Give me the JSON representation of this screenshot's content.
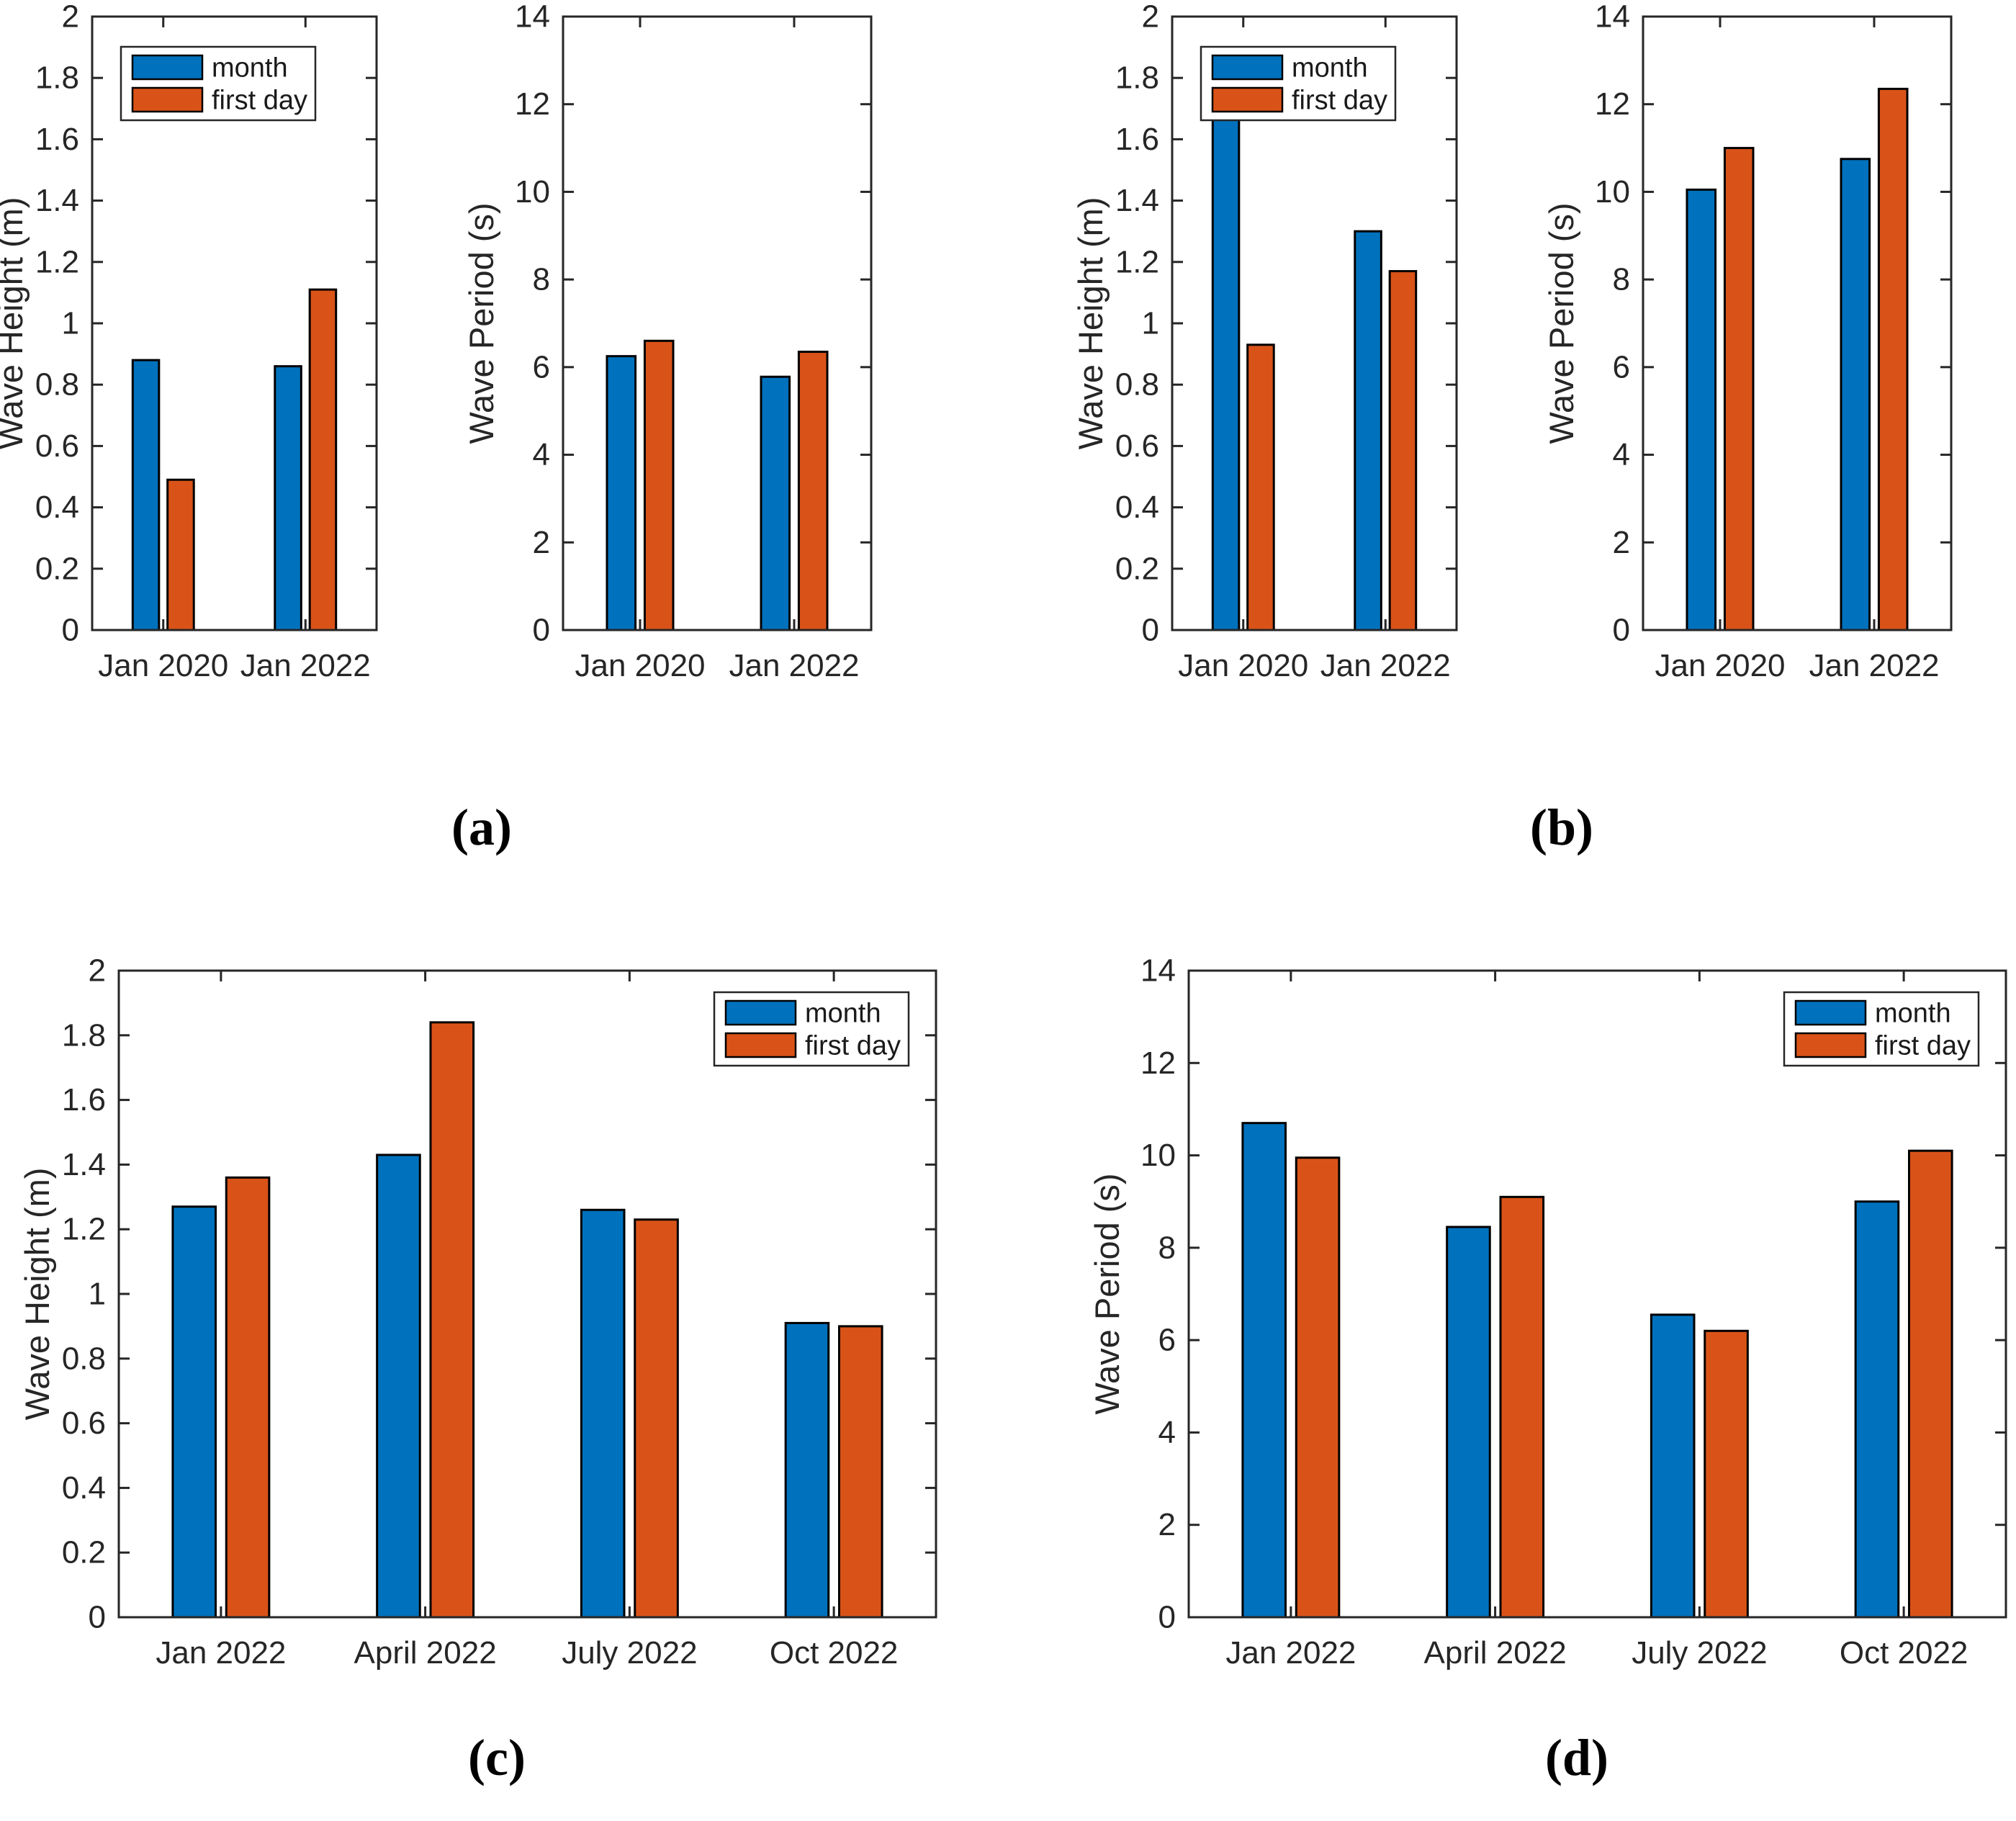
{
  "figure": {
    "captions": [
      "(a)",
      "(b)",
      "(c)",
      "(d)"
    ]
  },
  "colors": {
    "month": "#0072BD",
    "first_day": "#D95319",
    "bar_edge": "#000000",
    "axis": "#262626",
    "text": "#262626"
  },
  "chart_data": [
    {
      "id": "a-wave-height",
      "panel": "a",
      "type": "bar",
      "title": "",
      "xlabel": "",
      "ylabel": "Wave Height (m)",
      "ylim": [
        0,
        2
      ],
      "yticks": [
        0,
        0.2,
        0.4,
        0.6,
        0.8,
        1.0,
        1.2,
        1.4,
        1.6,
        1.8,
        2.0
      ],
      "ytick_labels": [
        "0",
        "0.2",
        "0.4",
        "0.6",
        "0.8",
        "1",
        "1.2",
        "1.4",
        "1.6",
        "1.8",
        "2"
      ],
      "categories": [
        "Jan 2020",
        "Jan 2022"
      ],
      "series": [
        {
          "name": "month",
          "color": "month",
          "values": [
            0.88,
            0.86
          ]
        },
        {
          "name": "first day",
          "color": "first_day",
          "values": [
            0.49,
            1.11
          ]
        }
      ],
      "legend": "northwest",
      "grid": false
    },
    {
      "id": "a-wave-period",
      "panel": "a",
      "type": "bar",
      "title": "",
      "xlabel": "",
      "ylabel": "Wave Period (s)",
      "ylim": [
        0,
        14
      ],
      "yticks": [
        0,
        2,
        4,
        6,
        8,
        10,
        12,
        14
      ],
      "ytick_labels": [
        "0",
        "2",
        "4",
        "6",
        "8",
        "10",
        "12",
        "14"
      ],
      "categories": [
        "Jan 2020",
        "Jan 2022"
      ],
      "series": [
        {
          "name": "month",
          "color": "month",
          "values": [
            6.25,
            5.78
          ]
        },
        {
          "name": "first day",
          "color": "first_day",
          "values": [
            6.6,
            6.35
          ]
        }
      ],
      "legend": "none",
      "grid": false
    },
    {
      "id": "b-wave-height",
      "panel": "b",
      "type": "bar",
      "title": "",
      "xlabel": "",
      "ylabel": "Wave Height (m)",
      "ylim": [
        0,
        2
      ],
      "yticks": [
        0,
        0.2,
        0.4,
        0.6,
        0.8,
        1.0,
        1.2,
        1.4,
        1.6,
        1.8,
        2.0
      ],
      "ytick_labels": [
        "0",
        "0.2",
        "0.4",
        "0.6",
        "0.8",
        "1",
        "1.2",
        "1.4",
        "1.6",
        "1.8",
        "2"
      ],
      "categories": [
        "Jan 2020",
        "Jan 2022"
      ],
      "series": [
        {
          "name": "month",
          "color": "month",
          "values": [
            1.67,
            1.3
          ]
        },
        {
          "name": "first day",
          "color": "first_day",
          "values": [
            0.93,
            1.17
          ]
        }
      ],
      "legend": "northwest",
      "grid": false
    },
    {
      "id": "b-wave-period",
      "panel": "b",
      "type": "bar",
      "title": "",
      "xlabel": "",
      "ylabel": "Wave Period (s)",
      "ylim": [
        0,
        14
      ],
      "yticks": [
        0,
        2,
        4,
        6,
        8,
        10,
        12,
        14
      ],
      "ytick_labels": [
        "0",
        "2",
        "4",
        "6",
        "8",
        "10",
        "12",
        "14"
      ],
      "categories": [
        "Jan 2020",
        "Jan 2022"
      ],
      "series": [
        {
          "name": "month",
          "color": "month",
          "values": [
            10.05,
            10.75
          ]
        },
        {
          "name": "first day",
          "color": "first_day",
          "values": [
            11.0,
            12.35
          ]
        }
      ],
      "legend": "none",
      "grid": false
    },
    {
      "id": "c-wave-height",
      "panel": "c",
      "type": "bar",
      "title": "",
      "xlabel": "",
      "ylabel": "Wave Height (m)",
      "ylim": [
        0,
        2
      ],
      "yticks": [
        0,
        0.2,
        0.4,
        0.6,
        0.8,
        1.0,
        1.2,
        1.4,
        1.6,
        1.8,
        2.0
      ],
      "ytick_labels": [
        "0",
        "0.2",
        "0.4",
        "0.6",
        "0.8",
        "1",
        "1.2",
        "1.4",
        "1.6",
        "1.8",
        "2"
      ],
      "categories": [
        "Jan 2022",
        "April 2022",
        "July 2022",
        "Oct 2022"
      ],
      "series": [
        {
          "name": "month",
          "color": "month",
          "values": [
            1.27,
            1.43,
            1.26,
            0.91
          ]
        },
        {
          "name": "first day",
          "color": "first_day",
          "values": [
            1.36,
            1.84,
            1.23,
            0.9
          ]
        }
      ],
      "legend": "northeast",
      "grid": false
    },
    {
      "id": "d-wave-period",
      "panel": "d",
      "type": "bar",
      "title": "",
      "xlabel": "",
      "ylabel": "Wave Period (s)",
      "ylim": [
        0,
        14
      ],
      "yticks": [
        0,
        2,
        4,
        6,
        8,
        10,
        12,
        14
      ],
      "ytick_labels": [
        "0",
        "2",
        "4",
        "6",
        "8",
        "10",
        "12",
        "14"
      ],
      "categories": [
        "Jan 2022",
        "April 2022",
        "July 2022",
        "Oct 2022"
      ],
      "series": [
        {
          "name": "month",
          "color": "month",
          "values": [
            10.7,
            8.45,
            6.55,
            9.0
          ]
        },
        {
          "name": "first day",
          "color": "first_day",
          "values": [
            9.95,
            9.1,
            6.2,
            10.1
          ]
        }
      ],
      "legend": "northeast",
      "grid": false
    }
  ]
}
